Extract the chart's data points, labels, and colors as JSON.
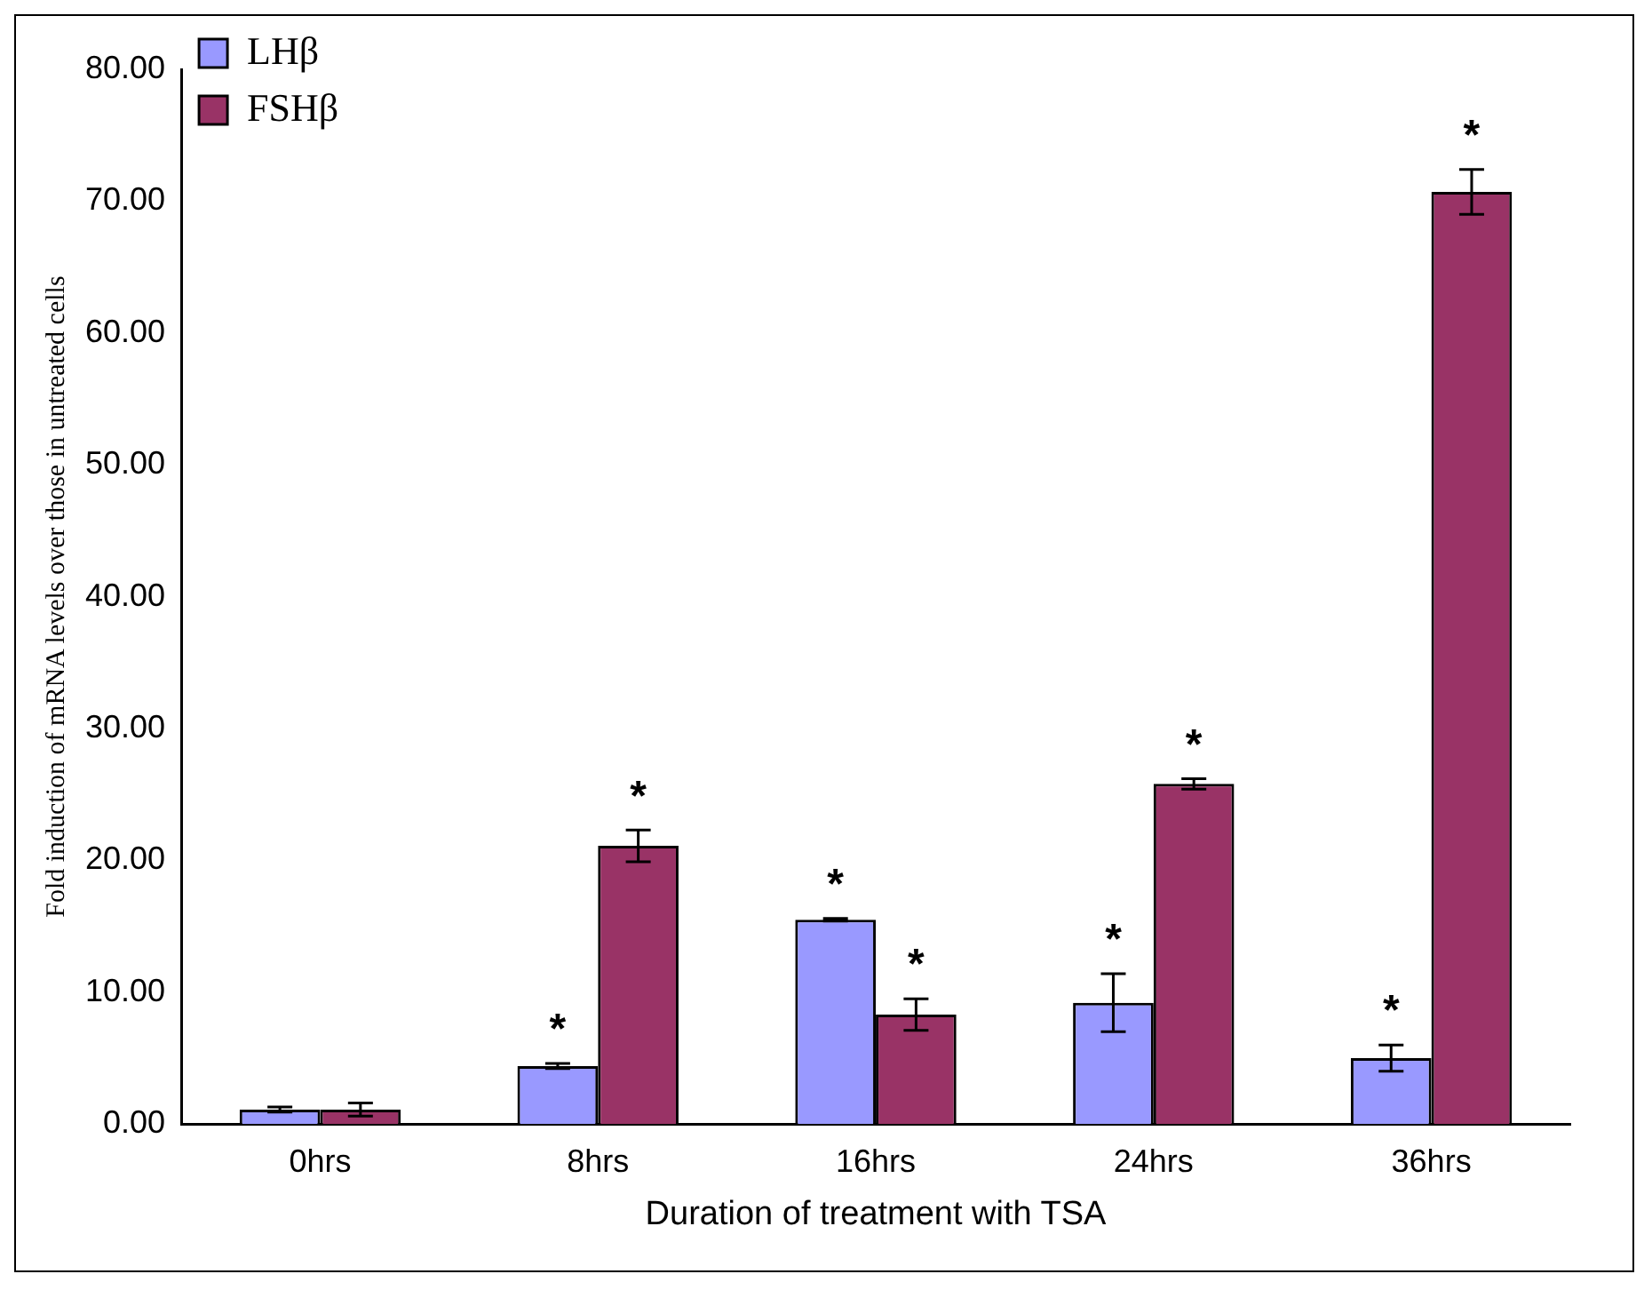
{
  "chart_data": {
    "type": "bar",
    "xlabel": "Duration of treatment with TSA",
    "ylabel": "Fold induction of mRNA levels over those in untreated cells",
    "categories": [
      "0hrs",
      "8hrs",
      "16hrs",
      "24hrs",
      "36hrs"
    ],
    "series": [
      {
        "name": "LHβ",
        "color": "#9999ff",
        "values": [
          1.1,
          4.4,
          15.5,
          9.2,
          5.0
        ],
        "errors": [
          0.2,
          0.2,
          0.1,
          2.2,
          1.0
        ]
      },
      {
        "name": "FSHβ",
        "color": "#993366",
        "values": [
          1.1,
          21.1,
          8.3,
          25.8,
          70.7
        ],
        "errors": [
          0.5,
          1.2,
          1.2,
          0.4,
          1.7
        ]
      }
    ],
    "ylim": [
      0,
      80
    ],
    "yticks": [
      {
        "value": 0,
        "label": "0.00"
      },
      {
        "value": 10,
        "label": "10.00"
      },
      {
        "value": 20,
        "label": "20.00"
      },
      {
        "value": 30,
        "label": "30.00"
      },
      {
        "value": 40,
        "label": "40.00"
      },
      {
        "value": 50,
        "label": "50.00"
      },
      {
        "value": 60,
        "label": "60.00"
      },
      {
        "value": 70,
        "label": "70.00"
      },
      {
        "value": 80,
        "label": "80.00"
      }
    ],
    "grid": false,
    "legend": "top left",
    "annotations": [
      {
        "text": "*",
        "x": "8hrs",
        "y": 4.4
      },
      {
        "text": "*",
        "x": "8hrs",
        "y": 21.1
      },
      {
        "text": "*",
        "x": "16hrs",
        "y": 15.5
      },
      {
        "text": "*",
        "x": "16hrs",
        "y": 8.3
      },
      {
        "text": "*",
        "x": "24hrs",
        "y": 9.2
      },
      {
        "text": "*",
        "x": "24hrs",
        "y": 25.8
      },
      {
        "text": "*",
        "x": "36hrs",
        "y": 5.0
      },
      {
        "text": "*",
        "x": "36hrs",
        "y": 70.7
      }
    ]
  }
}
